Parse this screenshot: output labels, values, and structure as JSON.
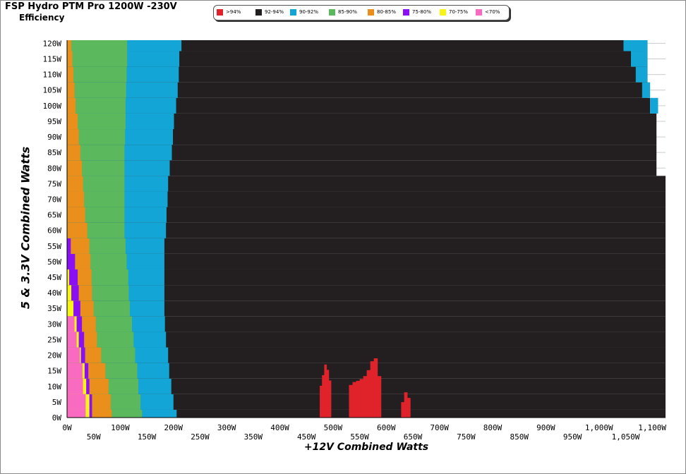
{
  "title": "FSP Hydro PTM Pro 1200W -230V",
  "subtitle": "Efficiency",
  "legend": [
    {
      "label": ">94%",
      "color": "#e0232b"
    },
    {
      "label": "92-94%",
      "color": "#231f20"
    },
    {
      "label": "90-92%",
      "color": "#13a5d6"
    },
    {
      "label": "85-90%",
      "color": "#5cb85c"
    },
    {
      "label": "80-85%",
      "color": "#ea8e1c"
    },
    {
      "label": "75-80%",
      "color": "#8b0ff5"
    },
    {
      "label": "70-75%",
      "color": "#f8f417"
    },
    {
      "label": "<70%",
      "color": "#f86bc1"
    }
  ],
  "chart_data": {
    "type": "heatmap",
    "title": "FSP Hydro PTM Pro 1200W -230V",
    "subtitle": "Efficiency",
    "xlabel": "+12V Combined Watts",
    "ylabel": "5 & 3.3V Combined Watts",
    "xlim": [
      0,
      1125
    ],
    "ylim": [
      0,
      120
    ],
    "grid": true,
    "legend_position": "top",
    "x_ticks_upper": [
      "0W",
      "100W",
      "200W",
      "300W",
      "400W",
      "500W",
      "600W",
      "700W",
      "800W",
      "900W",
      "1,000W",
      "1,100W"
    ],
    "x_ticks_lower": [
      "50W",
      "150W",
      "250W",
      "350W",
      "450W",
      "550W",
      "650W",
      "750W",
      "850W",
      "950W",
      "1,050W"
    ],
    "y_ticks": [
      "0W",
      "5W",
      "10W",
      "15W",
      "20W",
      "25W",
      "30W",
      "35W",
      "40W",
      "45W",
      "50W",
      "55W",
      "60W",
      "65W",
      "70W",
      "75W",
      "80W",
      "85W",
      "90W",
      "95W",
      "100W",
      "105W",
      "110W",
      "115W",
      "120W"
    ],
    "efficiency_band_upper_bounds_w": {
      "y_w": [
        0,
        5,
        10,
        15,
        20,
        25,
        30,
        35,
        40,
        45,
        50,
        55,
        60,
        65,
        70,
        75,
        80,
        85,
        90,
        95,
        100,
        105,
        110,
        115,
        120
      ],
      "lt70": [
        35,
        35,
        30,
        29,
        24,
        18,
        14,
        0,
        0,
        0,
        0,
        0,
        0,
        0,
        0,
        0,
        0,
        0,
        0,
        0,
        0,
        0,
        0,
        0,
        0
      ],
      "70-75": [
        42,
        42,
        36,
        33,
        26,
        22,
        18,
        12,
        8,
        4,
        0,
        0,
        0,
        0,
        0,
        0,
        0,
        0,
        0,
        0,
        0,
        0,
        0,
        0,
        0
      ],
      "75-80": [
        47,
        47,
        42,
        40,
        34,
        32,
        28,
        25,
        22,
        20,
        15,
        7,
        0,
        0,
        0,
        0,
        0,
        0,
        0,
        0,
        0,
        0,
        0,
        0,
        0
      ],
      "80-85": [
        84,
        82,
        78,
        72,
        64,
        56,
        54,
        50,
        47,
        46,
        44,
        42,
        38,
        34,
        32,
        30,
        28,
        25,
        22,
        20,
        16,
        14,
        12,
        10,
        8
      ],
      "85-90": [
        141,
        138,
        134,
        132,
        128,
        125,
        122,
        118,
        116,
        115,
        112,
        110,
        108,
        108,
        108,
        108,
        108,
        108,
        109,
        110,
        110,
        111,
        112,
        113,
        113
      ],
      "90-92": [
        206,
        200,
        196,
        192,
        190,
        186,
        184,
        183,
        183,
        183,
        183,
        183,
        186,
        187,
        189,
        190,
        193,
        197,
        199,
        201,
        205,
        208,
        210,
        211,
        215
      ]
    },
    "high_load_band": {
      "y_w": [
        75,
        80,
        85,
        90,
        95,
        100,
        105,
        110,
        115,
        120
      ],
      "90-92_from": [
        null,
        null,
        null,
        null,
        null,
        1096,
        1081,
        1069,
        1060,
        1046
      ],
      "90-92_to": [
        null,
        null,
        null,
        null,
        null,
        1111,
        1096,
        1091,
        1091,
        1091
      ],
      "92-94_to": [
        1125,
        1108,
        1108,
        1108,
        1108,
        1096,
        1091,
        1091,
        1091,
        1091
      ]
    },
    "gt94_regions": [
      {
        "x": [
          475,
          496
        ],
        "y_max_w": 17
      },
      {
        "x": [
          530,
          590
        ],
        "y_max_w": 19
      },
      {
        "x": [
          628,
          645
        ],
        "y_max_w": 9
      }
    ]
  }
}
